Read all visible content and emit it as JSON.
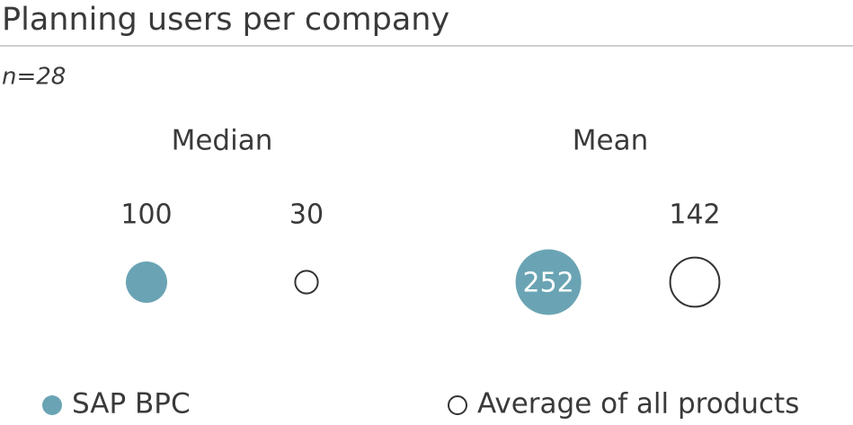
{
  "chart_data": {
    "type": "bubble",
    "title": "Planning users per company",
    "subtitle": "n=28",
    "categories": [
      "Median",
      "Mean"
    ],
    "series": [
      {
        "name": "SAP BPC",
        "color": "#6aa4b4",
        "values": [
          100,
          252
        ]
      },
      {
        "name": "Average of all products",
        "color": "#333333",
        "values": [
          30,
          142
        ]
      }
    ]
  }
}
